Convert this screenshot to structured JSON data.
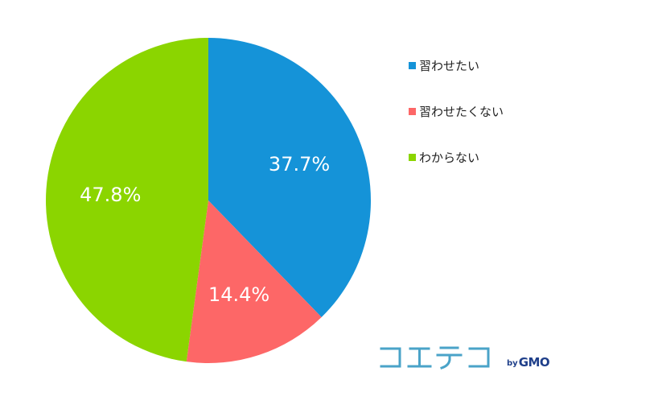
{
  "chart_data": {
    "type": "pie",
    "slices": [
      {
        "label": "習わせたい",
        "value": 37.7,
        "display": "37.7%",
        "color": "#1593d8"
      },
      {
        "label": "習わせたくない",
        "value": 14.4,
        "display": "14.4%",
        "color": "#fd6767"
      },
      {
        "label": "わからない",
        "value": 47.8,
        "display": "47.8%",
        "color": "#8bd500"
      }
    ],
    "start_angle": "12 o'clock",
    "direction": "clockwise",
    "legend_position": "right"
  },
  "logo": {
    "by": "by",
    "brand": "GMO",
    "mark_color": "#4aa3c8",
    "brand_color": "#1f3f8a"
  }
}
